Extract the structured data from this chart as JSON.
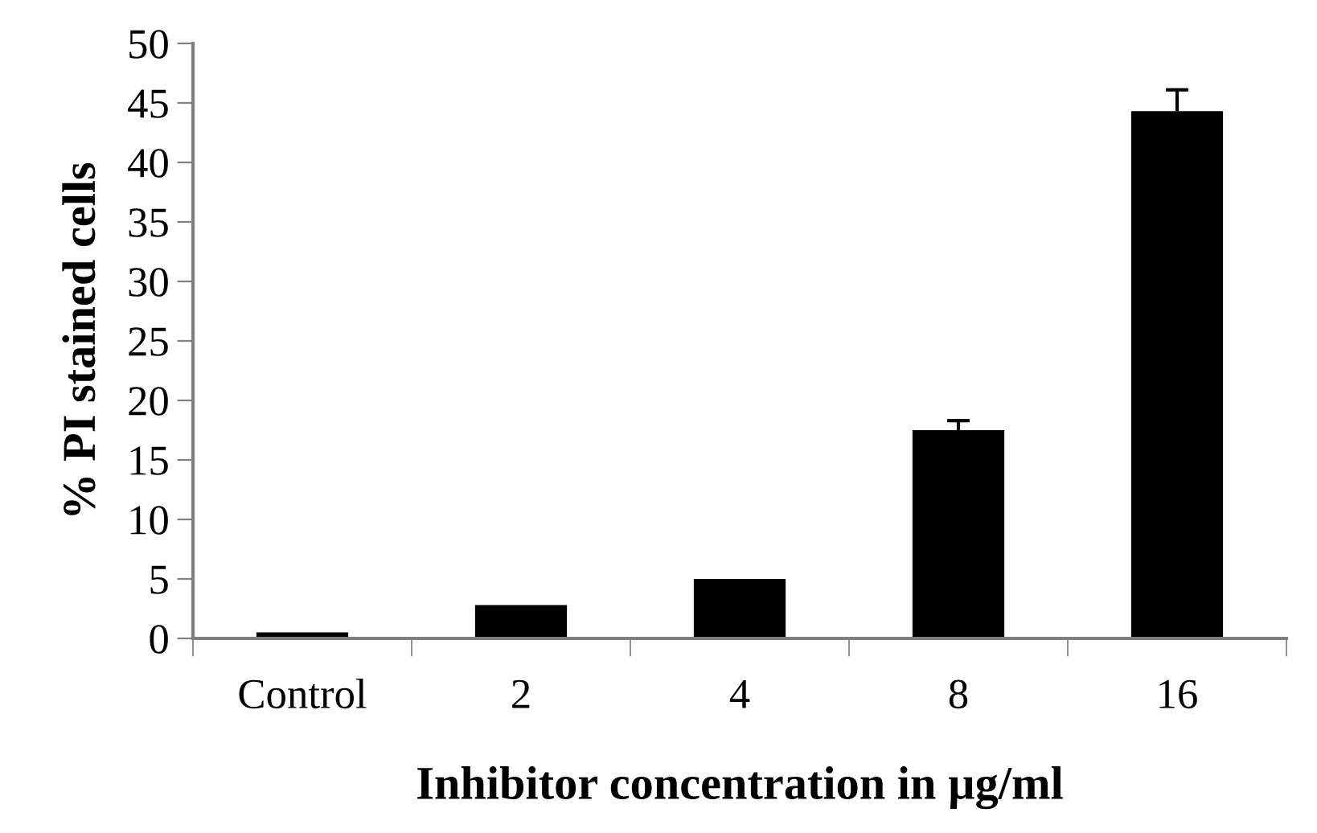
{
  "chart_data": {
    "type": "bar",
    "xlabel": "Inhibitor concentration in µg/ml",
    "ylabel": "% PI stained cells",
    "categories": [
      "Control",
      "2",
      "4",
      "8",
      "16"
    ],
    "values": [
      0.5,
      2.8,
      5,
      17.5,
      44.3
    ],
    "errors": [
      null,
      null,
      null,
      [
        17.5,
        18.3
      ],
      [
        44.3,
        46.1
      ]
    ],
    "color": "#000000",
    "ylim": [
      0,
      50
    ],
    "yticks": [
      0,
      5,
      10,
      15,
      20,
      25,
      30,
      35,
      40,
      45,
      50
    ],
    "grid": false,
    "legend": false
  }
}
